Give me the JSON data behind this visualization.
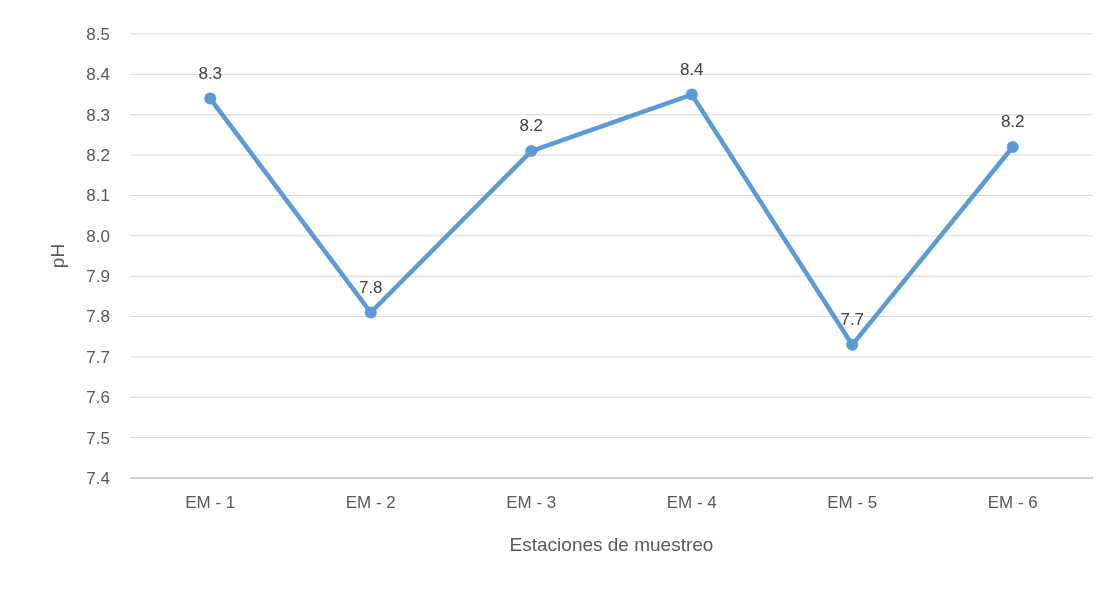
{
  "chart_data": {
    "type": "line",
    "xlabel": "Estaciones de muestreo",
    "ylabel": "pH",
    "categories": [
      "EM - 1",
      "EM - 2",
      "EM - 3",
      "EM - 4",
      "EM - 5",
      "EM - 6"
    ],
    "series": [
      {
        "color": "#5b9bd5",
        "values": [
          8.34,
          7.81,
          8.21,
          8.35,
          7.73,
          8.22
        ],
        "value_labels": [
          "8.3",
          "7.8",
          "8.2",
          "8.4",
          "7.7",
          "8.2"
        ]
      }
    ],
    "ylim": [
      7.4,
      8.5
    ],
    "yticks": [
      {
        "value": 7.4,
        "label": "7.4"
      },
      {
        "value": 7.5,
        "label": "7.5"
      },
      {
        "value": 7.6,
        "label": "7.6"
      },
      {
        "value": 7.7,
        "label": "7.7"
      },
      {
        "value": 7.8,
        "label": "7.8"
      },
      {
        "value": 7.9,
        "label": "7.9"
      },
      {
        "value": 8.0,
        "label": "8.0"
      },
      {
        "value": 8.1,
        "label": "8.1"
      },
      {
        "value": 8.2,
        "label": "8.2"
      },
      {
        "value": 8.3,
        "label": "8.3"
      },
      {
        "value": 8.4,
        "label": "8.4"
      },
      {
        "value": 8.5,
        "label": "8.5"
      }
    ],
    "grid": "y",
    "marker": "circle",
    "line_style": "solid"
  }
}
